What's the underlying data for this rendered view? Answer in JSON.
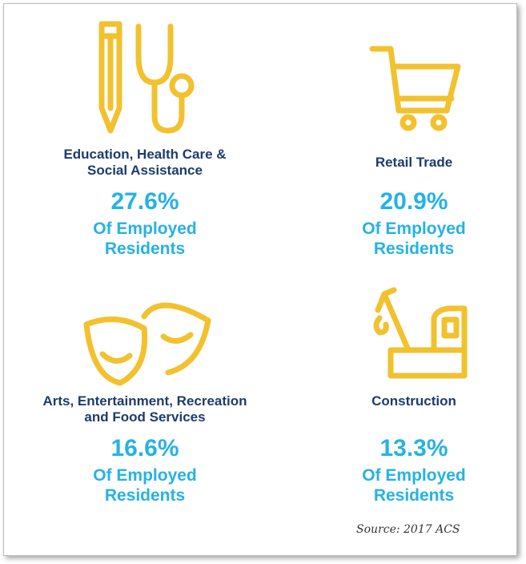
{
  "items": [
    {
      "label": [
        "Education, Health Care &",
        "Social Assistance"
      ],
      "percent": "27.6%",
      "note": [
        "Of Employed",
        "Residents"
      ]
    },
    {
      "label": [
        "Retail Trade"
      ],
      "percent": "20.9%",
      "note": [
        "Of Employed",
        "Residents"
      ]
    },
    {
      "label": [
        "Arts, Entertainment, Recreation",
        "and Food Services"
      ],
      "percent": "16.6%",
      "note": [
        "Of Employed",
        "Residents"
      ]
    },
    {
      "label": [
        "Construction"
      ],
      "percent": "13.3%",
      "note": [
        "Of Employed",
        "Residents"
      ]
    }
  ],
  "source": "Source: 2017 ACS"
}
